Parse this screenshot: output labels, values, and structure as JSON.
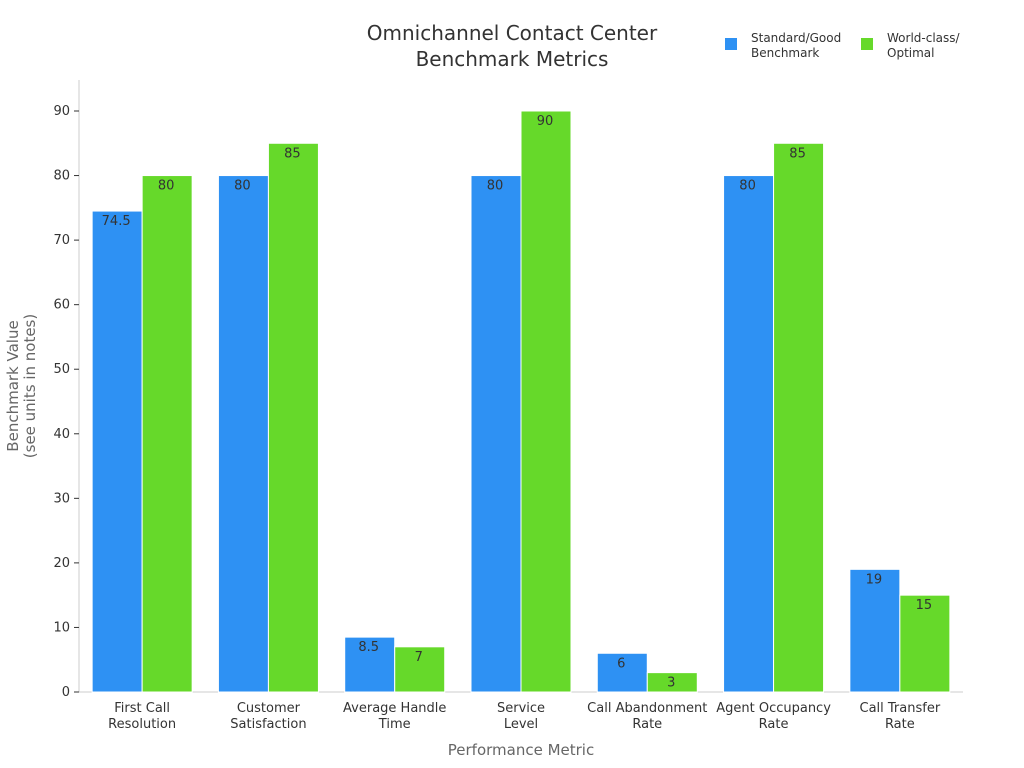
{
  "chart_data": {
    "type": "bar",
    "title_lines": [
      "Omnichannel Contact Center",
      "Benchmark Metrics"
    ],
    "xlabel": "Performance Metric",
    "ylabel_lines": [
      "Benchmark Value",
      "(see units in notes)"
    ],
    "ylim": [
      0,
      95
    ],
    "yticks": [
      0,
      10,
      20,
      30,
      40,
      50,
      60,
      70,
      80,
      90
    ],
    "grid": false,
    "legend_position": "top-right",
    "categories": [
      [
        "First Call",
        "Resolution"
      ],
      [
        "Customer",
        "Satisfaction"
      ],
      [
        "Average Handle",
        "Time"
      ],
      [
        "Service",
        "Level"
      ],
      [
        "Call Abandonment",
        "Rate"
      ],
      [
        "Agent Occupancy",
        "Rate"
      ],
      [
        "Call Transfer",
        "Rate"
      ]
    ],
    "series": [
      {
        "name_lines": [
          "Standard/Good",
          "Benchmark"
        ],
        "color": "#2E91F3",
        "values": [
          74.5,
          80,
          8.5,
          80,
          6,
          80,
          19
        ],
        "labels": [
          "74.5",
          "80",
          "8.5",
          "80",
          "6",
          "80",
          "19"
        ]
      },
      {
        "name_lines": [
          "World-class/",
          "Optimal"
        ],
        "color": "#66D92A",
        "values": [
          80,
          85,
          7,
          90,
          3,
          85,
          15
        ],
        "labels": [
          "80",
          "85",
          "7",
          "90",
          "3",
          "85",
          "15"
        ]
      }
    ]
  }
}
